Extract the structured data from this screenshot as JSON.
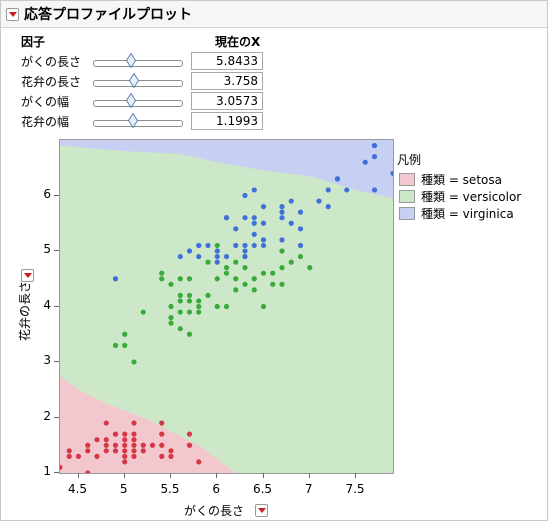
{
  "header": {
    "title": "応答プロファイルプロット"
  },
  "factor_table": {
    "col_factor": "因子",
    "col_current_x": "現在のX",
    "rows": [
      {
        "label": "がくの長さ",
        "value": "5.8433",
        "slider_fraction": 0.43
      },
      {
        "label": "花弁の長さ",
        "value": "3.758",
        "slider_fraction": 0.47
      },
      {
        "label": "がくの幅",
        "value": "3.0573",
        "slider_fraction": 0.43
      },
      {
        "label": "花弁の幅",
        "value": "1.1993",
        "slider_fraction": 0.45
      }
    ]
  },
  "legend": {
    "title": "凡例",
    "items": [
      {
        "label": "種類 = setosa",
        "color": "#f2c8ce"
      },
      {
        "label": "種類 = versicolor",
        "color": "#cde8c8"
      },
      {
        "label": "種類 = virginica",
        "color": "#c7cff2"
      }
    ]
  },
  "colors": {
    "setosa": "#d63646",
    "versicolor": "#3aaa3a",
    "virginica": "#3f6fd8"
  },
  "chart_data": {
    "type": "scatter",
    "xlabel": "がくの長さ",
    "ylabel": "花弁の長さ",
    "xlim": [
      4.3,
      7.9
    ],
    "ylim": [
      1.0,
      7.0
    ],
    "x_ticks": [
      "4.5",
      "5",
      "5.5",
      "6",
      "6.5",
      "7",
      "7.5"
    ],
    "y_ticks": [
      "1",
      "2",
      "3",
      "4",
      "5",
      "6"
    ],
    "series": [
      {
        "name": "setosa",
        "points": [
          [
            4.3,
            1.1
          ],
          [
            4.4,
            1.3
          ],
          [
            4.4,
            1.4
          ],
          [
            4.5,
            1.3
          ],
          [
            4.6,
            1.4
          ],
          [
            4.6,
            1.5
          ],
          [
            4.6,
            1.0
          ],
          [
            4.7,
            1.3
          ],
          [
            4.7,
            1.6
          ],
          [
            4.8,
            1.4
          ],
          [
            4.8,
            1.6
          ],
          [
            4.8,
            1.9
          ],
          [
            4.9,
            1.4
          ],
          [
            4.9,
            1.5
          ],
          [
            5.0,
            1.2
          ],
          [
            5.0,
            1.3
          ],
          [
            5.0,
            1.4
          ],
          [
            5.0,
            1.5
          ],
          [
            5.0,
            1.6
          ],
          [
            5.1,
            1.4
          ],
          [
            5.1,
            1.5
          ],
          [
            5.1,
            1.7
          ],
          [
            5.1,
            1.9
          ],
          [
            5.2,
            1.4
          ],
          [
            5.2,
            1.5
          ],
          [
            5.3,
            1.5
          ],
          [
            5.4,
            1.3
          ],
          [
            5.4,
            1.5
          ],
          [
            5.4,
            1.7
          ],
          [
            5.5,
            1.3
          ],
          [
            5.5,
            1.4
          ],
          [
            5.7,
            1.5
          ],
          [
            5.7,
            1.7
          ],
          [
            5.8,
            1.2
          ],
          [
            5.1,
            1.6
          ],
          [
            5.0,
            1.7
          ],
          [
            4.9,
            1.7
          ],
          [
            5.4,
            1.9
          ],
          [
            5.1,
            1.3
          ],
          [
            4.8,
            1.5
          ]
        ]
      },
      {
        "name": "versicolor",
        "points": [
          [
            4.9,
            3.3
          ],
          [
            5.0,
            3.5
          ],
          [
            5.0,
            3.3
          ],
          [
            5.1,
            3.0
          ],
          [
            5.2,
            3.9
          ],
          [
            5.4,
            4.5
          ],
          [
            5.5,
            4.0
          ],
          [
            5.5,
            3.7
          ],
          [
            5.5,
            3.8
          ],
          [
            5.5,
            4.4
          ],
          [
            5.6,
            3.6
          ],
          [
            5.6,
            3.9
          ],
          [
            5.6,
            4.2
          ],
          [
            5.6,
            4.5
          ],
          [
            5.6,
            4.1
          ],
          [
            5.7,
            3.5
          ],
          [
            5.7,
            4.2
          ],
          [
            5.7,
            4.5
          ],
          [
            5.7,
            4.1
          ],
          [
            5.8,
            3.9
          ],
          [
            5.8,
            4.0
          ],
          [
            5.8,
            4.1
          ],
          [
            5.9,
            4.2
          ],
          [
            5.9,
            4.8
          ],
          [
            6.0,
            4.0
          ],
          [
            6.0,
            4.5
          ],
          [
            6.0,
            5.1
          ],
          [
            6.1,
            4.0
          ],
          [
            6.1,
            4.6
          ],
          [
            6.1,
            4.7
          ],
          [
            6.2,
            4.3
          ],
          [
            6.2,
            4.5
          ],
          [
            6.3,
            4.4
          ],
          [
            6.3,
            4.7
          ],
          [
            6.3,
            4.9
          ],
          [
            6.4,
            4.3
          ],
          [
            6.4,
            4.5
          ],
          [
            6.5,
            4.6
          ],
          [
            6.6,
            4.4
          ],
          [
            6.6,
            4.6
          ],
          [
            6.7,
            4.4
          ],
          [
            6.7,
            4.7
          ],
          [
            6.7,
            5.0
          ],
          [
            6.8,
            4.8
          ],
          [
            6.9,
            4.9
          ],
          [
            7.0,
            4.7
          ],
          [
            5.4,
            4.6
          ],
          [
            5.7,
            3.9
          ],
          [
            6.2,
            4.8
          ],
          [
            6.5,
            4.0
          ]
        ]
      },
      {
        "name": "virginica",
        "points": [
          [
            4.9,
            4.5
          ],
          [
            5.6,
            4.9
          ],
          [
            5.7,
            5.0
          ],
          [
            5.8,
            5.1
          ],
          [
            6.0,
            4.8
          ],
          [
            6.0,
            5.0
          ],
          [
            6.1,
            4.9
          ],
          [
            6.1,
            5.6
          ],
          [
            6.2,
            5.4
          ],
          [
            6.3,
            5.0
          ],
          [
            6.3,
            5.6
          ],
          [
            6.3,
            6.0
          ],
          [
            6.4,
            5.3
          ],
          [
            6.4,
            5.5
          ],
          [
            6.4,
            5.6
          ],
          [
            6.5,
            5.1
          ],
          [
            6.5,
            5.5
          ],
          [
            6.7,
            5.2
          ],
          [
            6.7,
            5.7
          ],
          [
            6.8,
            5.5
          ],
          [
            6.9,
            5.1
          ],
          [
            6.9,
            5.7
          ],
          [
            7.1,
            5.9
          ],
          [
            7.2,
            5.8
          ],
          [
            7.2,
            6.1
          ],
          [
            7.3,
            6.3
          ],
          [
            7.4,
            6.1
          ],
          [
            7.6,
            6.6
          ],
          [
            7.7,
            6.7
          ],
          [
            7.7,
            6.9
          ],
          [
            7.9,
            6.4
          ],
          [
            5.8,
            5.1
          ],
          [
            6.3,
            5.1
          ],
          [
            6.5,
            5.8
          ],
          [
            7.7,
            6.1
          ],
          [
            6.2,
            5.1
          ],
          [
            6.0,
            4.9
          ],
          [
            6.4,
            6.1
          ],
          [
            6.9,
            5.4
          ],
          [
            6.7,
            5.8
          ],
          [
            7.3,
            6.3
          ],
          [
            7.7,
            6.9
          ],
          [
            6.3,
            4.9
          ],
          [
            6.8,
            5.9
          ],
          [
            6.1,
            5.6
          ],
          [
            6.5,
            5.2
          ],
          [
            5.9,
            5.1
          ],
          [
            6.4,
            5.1
          ],
          [
            5.8,
            4.9
          ],
          [
            6.7,
            5.6
          ]
        ]
      }
    ]
  }
}
